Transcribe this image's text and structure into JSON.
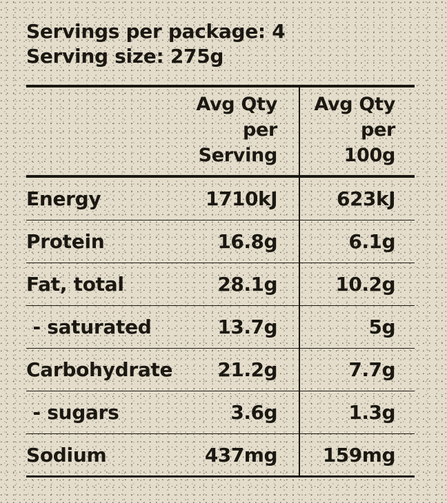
{
  "header": {
    "servings": "Servings per package: 4",
    "serving_size": "Serving size: 275g"
  },
  "columns": {
    "per_serving": [
      "Avg Qty",
      "per",
      "Serving"
    ],
    "per_100g": [
      "Avg Qty",
      "per",
      "100g"
    ]
  },
  "rows": [
    {
      "label": "Energy",
      "per_serving": "1710kJ",
      "per_100g": "623kJ"
    },
    {
      "label": "Protein",
      "per_serving": "16.8g",
      "per_100g": "6.1g"
    },
    {
      "label": "Fat, total",
      "per_serving": "28.1g",
      "per_100g": "10.2g"
    },
    {
      "label": " - saturated",
      "per_serving": "13.7g",
      "per_100g": "5g"
    },
    {
      "label": "Carbohydrate",
      "per_serving": "21.2g",
      "per_100g": "7.7g"
    },
    {
      "label": " - sugars",
      "per_serving": "3.6g",
      "per_100g": "1.3g"
    },
    {
      "label": "Sodium",
      "per_serving": "437mg",
      "per_100g": "159mg"
    }
  ],
  "colors": {
    "background": "#e4ddcb",
    "ink": "#1b1812"
  }
}
